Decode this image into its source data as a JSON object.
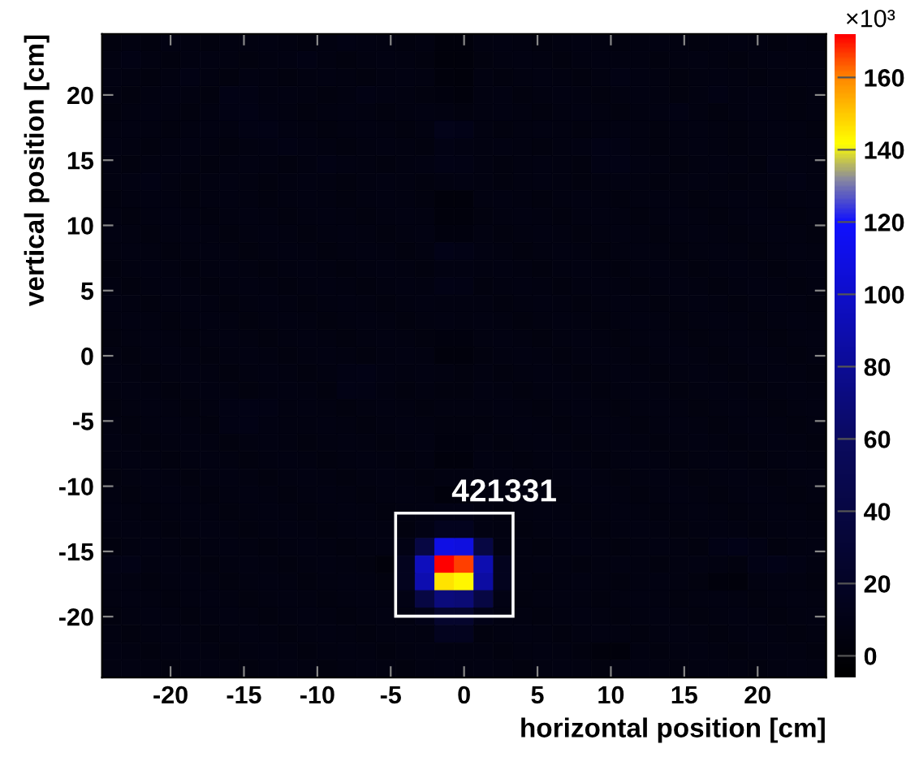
{
  "chart_data": {
    "type": "heatmap",
    "xlabel": "horizontal position [cm]",
    "ylabel": "vertical position [cm]",
    "clabel": "×10³",
    "x": [
      -24.0,
      -22.67,
      -21.33,
      -20.0,
      -18.67,
      -17.33,
      -16.0,
      -14.67,
      -13.33,
      -12.0,
      -10.67,
      -9.33,
      -8.0,
      -6.67,
      -5.33,
      -4.0,
      -2.67,
      -1.33,
      0.0,
      1.33,
      2.67,
      4.0,
      5.33,
      6.67,
      8.0,
      9.33,
      10.67,
      12.0,
      13.33,
      14.67,
      16.0,
      17.33,
      18.67,
      20.0,
      21.33,
      22.67,
      24.0
    ],
    "y": [
      24.0,
      22.67,
      21.33,
      20.0,
      18.67,
      17.33,
      16.0,
      14.67,
      13.33,
      12.0,
      10.67,
      9.33,
      8.0,
      6.67,
      5.33,
      4.0,
      2.67,
      1.33,
      0.0,
      -1.33,
      -2.67,
      -4.0,
      -5.33,
      -6.67,
      -8.0,
      -9.33,
      -10.67,
      -12.0,
      -13.33,
      -14.67,
      -16.0,
      -17.33,
      -18.67,
      -20.0,
      -21.33,
      -22.67,
      -24.0
    ],
    "xlim": [
      -24.67,
      24.67
    ],
    "ylim": [
      -24.67,
      24.67
    ],
    "xticks": [
      -20,
      -15,
      -10,
      -5,
      0,
      5,
      10,
      15,
      20
    ],
    "yticks": [
      -20,
      -15,
      -10,
      -5,
      0,
      5,
      10,
      15,
      20
    ],
    "clim": [
      -6,
      172
    ],
    "cticks": [
      0,
      20,
      40,
      60,
      80,
      100,
      120,
      140,
      160
    ],
    "cells": [
      [
        5,
        6,
        5,
        7,
        6,
        5,
        6,
        6,
        7,
        6,
        5,
        6,
        8,
        7,
        6,
        5,
        6,
        3,
        3,
        6,
        7,
        6,
        5,
        6,
        7,
        6,
        5,
        6,
        7,
        6,
        5,
        6,
        7,
        6,
        5,
        6,
        5
      ],
      [
        6,
        8,
        6,
        5,
        6,
        7,
        6,
        5,
        6,
        7,
        8,
        6,
        5,
        6,
        7,
        6,
        5,
        2,
        2,
        5,
        6,
        7,
        6,
        5,
        6,
        7,
        6,
        6,
        5,
        6,
        7,
        6,
        5,
        6,
        7,
        6,
        6
      ],
      [
        7,
        6,
        5,
        6,
        8,
        6,
        5,
        7,
        6,
        5,
        6,
        7,
        6,
        5,
        6,
        7,
        6,
        3,
        2,
        6,
        5,
        6,
        7,
        6,
        5,
        6,
        8,
        7,
        6,
        5,
        6,
        7,
        6,
        5,
        6,
        6,
        7
      ],
      [
        6,
        5,
        6,
        7,
        6,
        5,
        9,
        8,
        6,
        7,
        6,
        5,
        6,
        8,
        7,
        6,
        5,
        4,
        3,
        6,
        7,
        5,
        6,
        7,
        6,
        5,
        6,
        7,
        6,
        5,
        6,
        8,
        6,
        7,
        6,
        5,
        6
      ],
      [
        5,
        6,
        7,
        6,
        5,
        6,
        8,
        9,
        7,
        6,
        5,
        6,
        7,
        6,
        5,
        6,
        7,
        6,
        5,
        6,
        7,
        6,
        5,
        6,
        7,
        6,
        5,
        6,
        7,
        8,
        6,
        5,
        6,
        7,
        6,
        5,
        6
      ],
      [
        6,
        7,
        6,
        5,
        6,
        7,
        6,
        8,
        9,
        7,
        6,
        5,
        6,
        7,
        6,
        5,
        6,
        12,
        10,
        6,
        5,
        6,
        7,
        6,
        5,
        6,
        7,
        6,
        5,
        6,
        7,
        6,
        5,
        6,
        7,
        6,
        5
      ],
      [
        7,
        6,
        5,
        6,
        7,
        6,
        5,
        6,
        7,
        8,
        7,
        6,
        5,
        6,
        7,
        6,
        5,
        8,
        7,
        6,
        7,
        6,
        5,
        6,
        7,
        9,
        8,
        6,
        5,
        6,
        7,
        6,
        5,
        6,
        7,
        6,
        6
      ],
      [
        6,
        5,
        6,
        7,
        6,
        5,
        6,
        7,
        6,
        5,
        6,
        8,
        7,
        6,
        5,
        6,
        7,
        9,
        8,
        6,
        5,
        6,
        7,
        6,
        5,
        8,
        9,
        7,
        6,
        5,
        6,
        7,
        6,
        5,
        8,
        7,
        6
      ],
      [
        6,
        7,
        8,
        6,
        5,
        6,
        7,
        6,
        5,
        6,
        7,
        6,
        5,
        6,
        7,
        6,
        5,
        6,
        7,
        6,
        5,
        6,
        7,
        6,
        5,
        6,
        7,
        6,
        5,
        6,
        7,
        6,
        5,
        6,
        7,
        8,
        6
      ],
      [
        5,
        6,
        7,
        6,
        5,
        6,
        7,
        6,
        5,
        6,
        7,
        6,
        5,
        6,
        7,
        6,
        5,
        2,
        2,
        6,
        7,
        6,
        5,
        6,
        7,
        6,
        5,
        6,
        7,
        6,
        5,
        6,
        7,
        6,
        5,
        6,
        7
      ],
      [
        6,
        5,
        6,
        7,
        6,
        5,
        6,
        7,
        6,
        5,
        6,
        7,
        6,
        5,
        6,
        7,
        6,
        3,
        3,
        5,
        6,
        7,
        6,
        5,
        6,
        7,
        6,
        5,
        6,
        7,
        6,
        5,
        6,
        7,
        6,
        5,
        6
      ],
      [
        7,
        6,
        5,
        6,
        7,
        6,
        5,
        6,
        7,
        6,
        5,
        6,
        7,
        6,
        5,
        6,
        7,
        4,
        4,
        6,
        5,
        6,
        7,
        6,
        5,
        6,
        7,
        6,
        5,
        6,
        7,
        6,
        5,
        6,
        7,
        6,
        5
      ],
      [
        6,
        7,
        6,
        5,
        6,
        7,
        6,
        5,
        6,
        7,
        6,
        5,
        6,
        7,
        6,
        5,
        6,
        10,
        9,
        7,
        6,
        5,
        6,
        7,
        6,
        5,
        6,
        7,
        6,
        5,
        6,
        7,
        6,
        5,
        6,
        7,
        6
      ],
      [
        5,
        6,
        7,
        6,
        5,
        6,
        7,
        6,
        5,
        6,
        7,
        6,
        5,
        6,
        7,
        6,
        5,
        7,
        7,
        6,
        7,
        6,
        5,
        6,
        7,
        6,
        5,
        6,
        7,
        6,
        5,
        6,
        7,
        6,
        5,
        6,
        7
      ],
      [
        6,
        5,
        6,
        7,
        6,
        5,
        6,
        7,
        6,
        5,
        6,
        7,
        6,
        5,
        6,
        7,
        6,
        9,
        8,
        5,
        6,
        7,
        6,
        5,
        6,
        7,
        6,
        5,
        6,
        7,
        6,
        5,
        6,
        7,
        6,
        5,
        6
      ],
      [
        7,
        6,
        5,
        6,
        7,
        6,
        5,
        6,
        7,
        6,
        5,
        6,
        7,
        6,
        5,
        6,
        7,
        6,
        6,
        6,
        5,
        6,
        7,
        6,
        5,
        6,
        7,
        6,
        5,
        6,
        7,
        6,
        5,
        6,
        7,
        6,
        5
      ],
      [
        6,
        7,
        6,
        5,
        6,
        7,
        6,
        5,
        6,
        7,
        6,
        5,
        6,
        7,
        6,
        5,
        6,
        7,
        6,
        7,
        6,
        5,
        6,
        7,
        6,
        5,
        6,
        7,
        6,
        5,
        6,
        7,
        6,
        5,
        6,
        7,
        6
      ],
      [
        5,
        6,
        7,
        6,
        5,
        6,
        7,
        6,
        5,
        6,
        7,
        6,
        5,
        6,
        7,
        6,
        5,
        4,
        4,
        6,
        7,
        6,
        5,
        6,
        7,
        6,
        5,
        6,
        7,
        6,
        5,
        6,
        7,
        6,
        5,
        6,
        7
      ],
      [
        6,
        5,
        6,
        7,
        6,
        5,
        6,
        7,
        6,
        5,
        6,
        7,
        6,
        5,
        6,
        7,
        6,
        3,
        3,
        5,
        6,
        7,
        6,
        5,
        6,
        7,
        6,
        5,
        6,
        7,
        6,
        5,
        6,
        7,
        6,
        5,
        6
      ],
      [
        7,
        6,
        5,
        6,
        7,
        6,
        5,
        6,
        7,
        6,
        5,
        6,
        8,
        9,
        7,
        6,
        7,
        6,
        5,
        6,
        5,
        6,
        7,
        6,
        5,
        6,
        7,
        6,
        5,
        6,
        7,
        6,
        5,
        6,
        7,
        6,
        5
      ],
      [
        6,
        7,
        6,
        5,
        6,
        7,
        6,
        5,
        6,
        7,
        6,
        5,
        9,
        8,
        6,
        5,
        6,
        5,
        5,
        7,
        6,
        5,
        6,
        7,
        6,
        5,
        6,
        7,
        6,
        5,
        6,
        7,
        6,
        5,
        6,
        7,
        6
      ],
      [
        5,
        6,
        7,
        6,
        5,
        6,
        8,
        9,
        8,
        6,
        7,
        6,
        5,
        6,
        7,
        6,
        5,
        6,
        6,
        6,
        7,
        6,
        5,
        6,
        7,
        6,
        5,
        6,
        7,
        6,
        5,
        6,
        7,
        6,
        5,
        6,
        7
      ],
      [
        6,
        5,
        6,
        7,
        6,
        5,
        8,
        9,
        7,
        6,
        6,
        7,
        6,
        5,
        6,
        7,
        6,
        5,
        5,
        5,
        6,
        7,
        6,
        5,
        6,
        7,
        6,
        5,
        6,
        7,
        6,
        5,
        6,
        7,
        6,
        5,
        6
      ],
      [
        7,
        6,
        5,
        6,
        7,
        6,
        5,
        6,
        7,
        6,
        5,
        6,
        7,
        6,
        5,
        6,
        7,
        4,
        4,
        6,
        5,
        6,
        7,
        6,
        5,
        6,
        7,
        6,
        5,
        6,
        7,
        6,
        5,
        6,
        7,
        6,
        5
      ],
      [
        6,
        7,
        6,
        5,
        6,
        7,
        6,
        5,
        6,
        7,
        6,
        5,
        6,
        7,
        6,
        5,
        6,
        3,
        3,
        7,
        6,
        5,
        6,
        7,
        6,
        5,
        6,
        7,
        6,
        5,
        6,
        7,
        6,
        5,
        6,
        7,
        6
      ],
      [
        5,
        6,
        7,
        6,
        5,
        6,
        7,
        6,
        5,
        6,
        7,
        6,
        5,
        6,
        7,
        6,
        5,
        6,
        6,
        6,
        7,
        6,
        5,
        6,
        7,
        6,
        5,
        6,
        7,
        6,
        5,
        6,
        7,
        6,
        5,
        6,
        7
      ],
      [
        6,
        5,
        6,
        7,
        6,
        5,
        6,
        7,
        6,
        5,
        6,
        7,
        6,
        5,
        6,
        7,
        6,
        3,
        3,
        5,
        6,
        7,
        6,
        5,
        6,
        7,
        6,
        5,
        6,
        7,
        6,
        5,
        6,
        7,
        6,
        5,
        6
      ],
      [
        7,
        6,
        5,
        6,
        7,
        6,
        5,
        6,
        7,
        6,
        5,
        6,
        7,
        6,
        5,
        6,
        7,
        8,
        8,
        6,
        5,
        6,
        7,
        6,
        5,
        6,
        7,
        6,
        5,
        6,
        7,
        6,
        5,
        6,
        7,
        6,
        5
      ],
      [
        6,
        7,
        6,
        5,
        6,
        7,
        6,
        5,
        6,
        7,
        6,
        5,
        6,
        7,
        6,
        5,
        8,
        15,
        15,
        7,
        6,
        5,
        6,
        7,
        6,
        5,
        6,
        7,
        6,
        5,
        6,
        7,
        6,
        5,
        6,
        7,
        6
      ],
      [
        5,
        6,
        7,
        6,
        5,
        6,
        7,
        6,
        5,
        6,
        7,
        6,
        5,
        6,
        7,
        8,
        40,
        110,
        108,
        40,
        7,
        6,
        5,
        6,
        7,
        6,
        5,
        6,
        7,
        6,
        5,
        9,
        10,
        8,
        5,
        6,
        7
      ],
      [
        8,
        9,
        6,
        7,
        6,
        5,
        6,
        7,
        6,
        5,
        6,
        7,
        6,
        5,
        2,
        15,
        95,
        172,
        166,
        90,
        15,
        6,
        7,
        6,
        5,
        6,
        7,
        6,
        5,
        6,
        7,
        6,
        5,
        9,
        10,
        8,
        6
      ],
      [
        7,
        6,
        5,
        6,
        7,
        6,
        5,
        6,
        7,
        6,
        5,
        6,
        7,
        6,
        5,
        15,
        90,
        146,
        143,
        85,
        15,
        6,
        5,
        6,
        7,
        6,
        5,
        6,
        7,
        6,
        5,
        3,
        2,
        6,
        7,
        6,
        5
      ],
      [
        6,
        7,
        6,
        5,
        6,
        7,
        6,
        5,
        6,
        7,
        6,
        5,
        6,
        7,
        6,
        8,
        40,
        70,
        68,
        40,
        8,
        5,
        6,
        7,
        6,
        5,
        6,
        7,
        6,
        5,
        6,
        7,
        6,
        5,
        6,
        7,
        6
      ],
      [
        5,
        6,
        7,
        6,
        5,
        6,
        7,
        6,
        5,
        6,
        7,
        6,
        5,
        6,
        7,
        6,
        10,
        25,
        25,
        10,
        7,
        6,
        5,
        6,
        7,
        6,
        5,
        6,
        7,
        6,
        5,
        6,
        7,
        6,
        5,
        6,
        7
      ],
      [
        6,
        5,
        6,
        7,
        6,
        5,
        6,
        7,
        6,
        5,
        6,
        7,
        6,
        5,
        6,
        7,
        6,
        15,
        15,
        5,
        6,
        7,
        6,
        5,
        6,
        7,
        6,
        5,
        6,
        7,
        6,
        5,
        6,
        7,
        6,
        5,
        6
      ],
      [
        7,
        6,
        5,
        6,
        7,
        6,
        5,
        6,
        7,
        6,
        5,
        6,
        7,
        6,
        5,
        6,
        7,
        6,
        6,
        6,
        5,
        6,
        7,
        6,
        5,
        3,
        2,
        6,
        5,
        6,
        7,
        6,
        5,
        6,
        7,
        6,
        5
      ],
      [
        6,
        7,
        6,
        5,
        6,
        7,
        6,
        5,
        6,
        7,
        6,
        5,
        6,
        7,
        6,
        5,
        6,
        7,
        6,
        7,
        6,
        5,
        6,
        7,
        6,
        5,
        6,
        7,
        6,
        5,
        6,
        7,
        6,
        5,
        6,
        7,
        6
      ]
    ],
    "annotations": [
      "421331"
    ],
    "grid": false
  }
}
